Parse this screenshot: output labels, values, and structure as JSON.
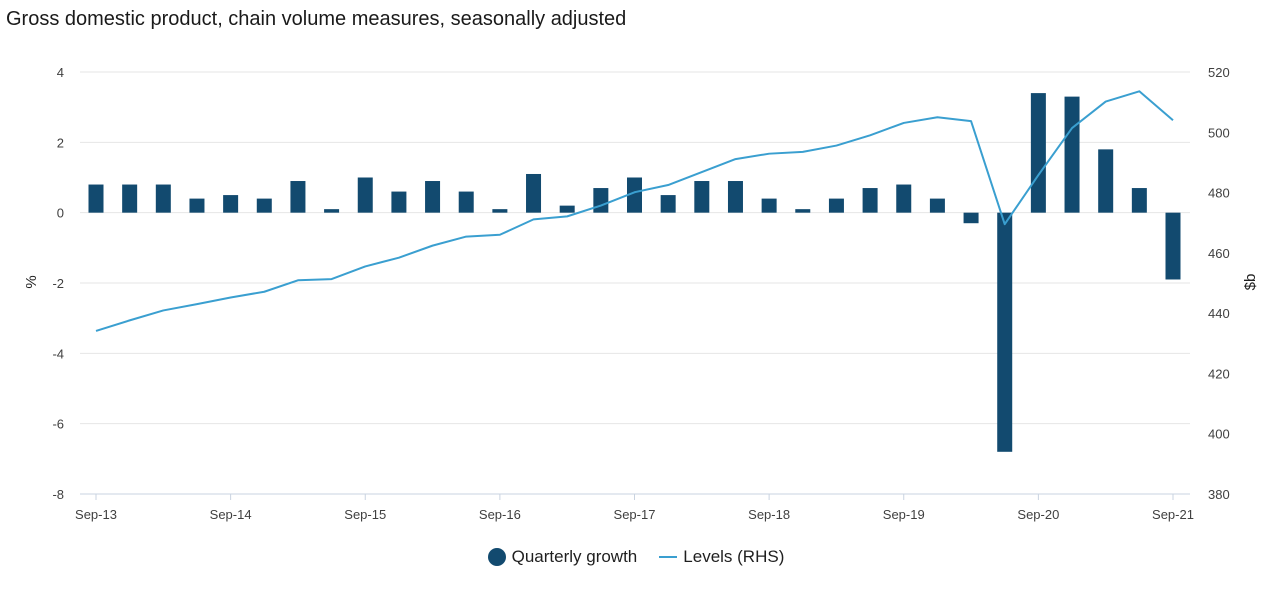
{
  "chart_data": {
    "type": "bar+line",
    "title": "Gross domestic product, chain volume measures, seasonally adjusted",
    "ylabel_left": "%",
    "ylabel_right": "$b",
    "ylim_left": [
      -8,
      4
    ],
    "ylim_right": [
      380,
      520
    ],
    "yticks_left": [
      4,
      2,
      0,
      -2,
      -4,
      -6,
      -8
    ],
    "yticks_right": [
      520,
      500,
      480,
      460,
      440,
      420,
      400,
      380
    ],
    "x_tick_labels": [
      "Sep-13",
      "Sep-14",
      "Sep-15",
      "Sep-16",
      "Sep-17",
      "Sep-18",
      "Sep-19",
      "Sep-20",
      "Sep-21"
    ],
    "quarters": [
      "Sep-13",
      "Dec-13",
      "Mar-14",
      "Jun-14",
      "Sep-14",
      "Dec-14",
      "Mar-15",
      "Jun-15",
      "Sep-15",
      "Dec-15",
      "Mar-16",
      "Jun-16",
      "Sep-16",
      "Dec-16",
      "Mar-17",
      "Jun-17",
      "Sep-17",
      "Dec-17",
      "Mar-18",
      "Jun-18",
      "Sep-18",
      "Dec-18",
      "Mar-19",
      "Jun-19",
      "Sep-19",
      "Dec-19",
      "Mar-20",
      "Jun-20",
      "Sep-20",
      "Dec-20",
      "Mar-21",
      "Jun-21",
      "Sep-21"
    ],
    "series": [
      {
        "name": "Quarterly growth",
        "type": "bar",
        "axis": "left",
        "color": "#124a6f",
        "values": [
          0.8,
          0.8,
          0.8,
          0.4,
          0.5,
          0.4,
          0.9,
          0.1,
          1.0,
          0.6,
          0.9,
          0.6,
          0.1,
          1.1,
          0.2,
          0.7,
          1.0,
          0.5,
          0.9,
          0.9,
          0.4,
          0.1,
          0.4,
          0.7,
          0.8,
          0.4,
          -0.3,
          -6.8,
          3.4,
          3.3,
          1.8,
          0.7,
          -1.9
        ]
      },
      {
        "name": "Levels (RHS)",
        "type": "line",
        "axis": "right",
        "color": "#3a9fd0",
        "values": [
          434.1,
          437.6,
          440.9,
          443.0,
          445.2,
          447.1,
          450.9,
          451.3,
          455.5,
          458.4,
          462.4,
          465.4,
          466.0,
          471.1,
          472.1,
          475.7,
          480.1,
          482.5,
          486.8,
          491.1,
          492.9,
          493.5,
          495.6,
          499.0,
          503.1,
          505.0,
          503.7,
          469.5,
          485.8,
          501.4,
          510.2,
          513.6,
          504.0
        ]
      }
    ],
    "legend": [
      "Quarterly growth",
      "Levels (RHS)"
    ]
  }
}
